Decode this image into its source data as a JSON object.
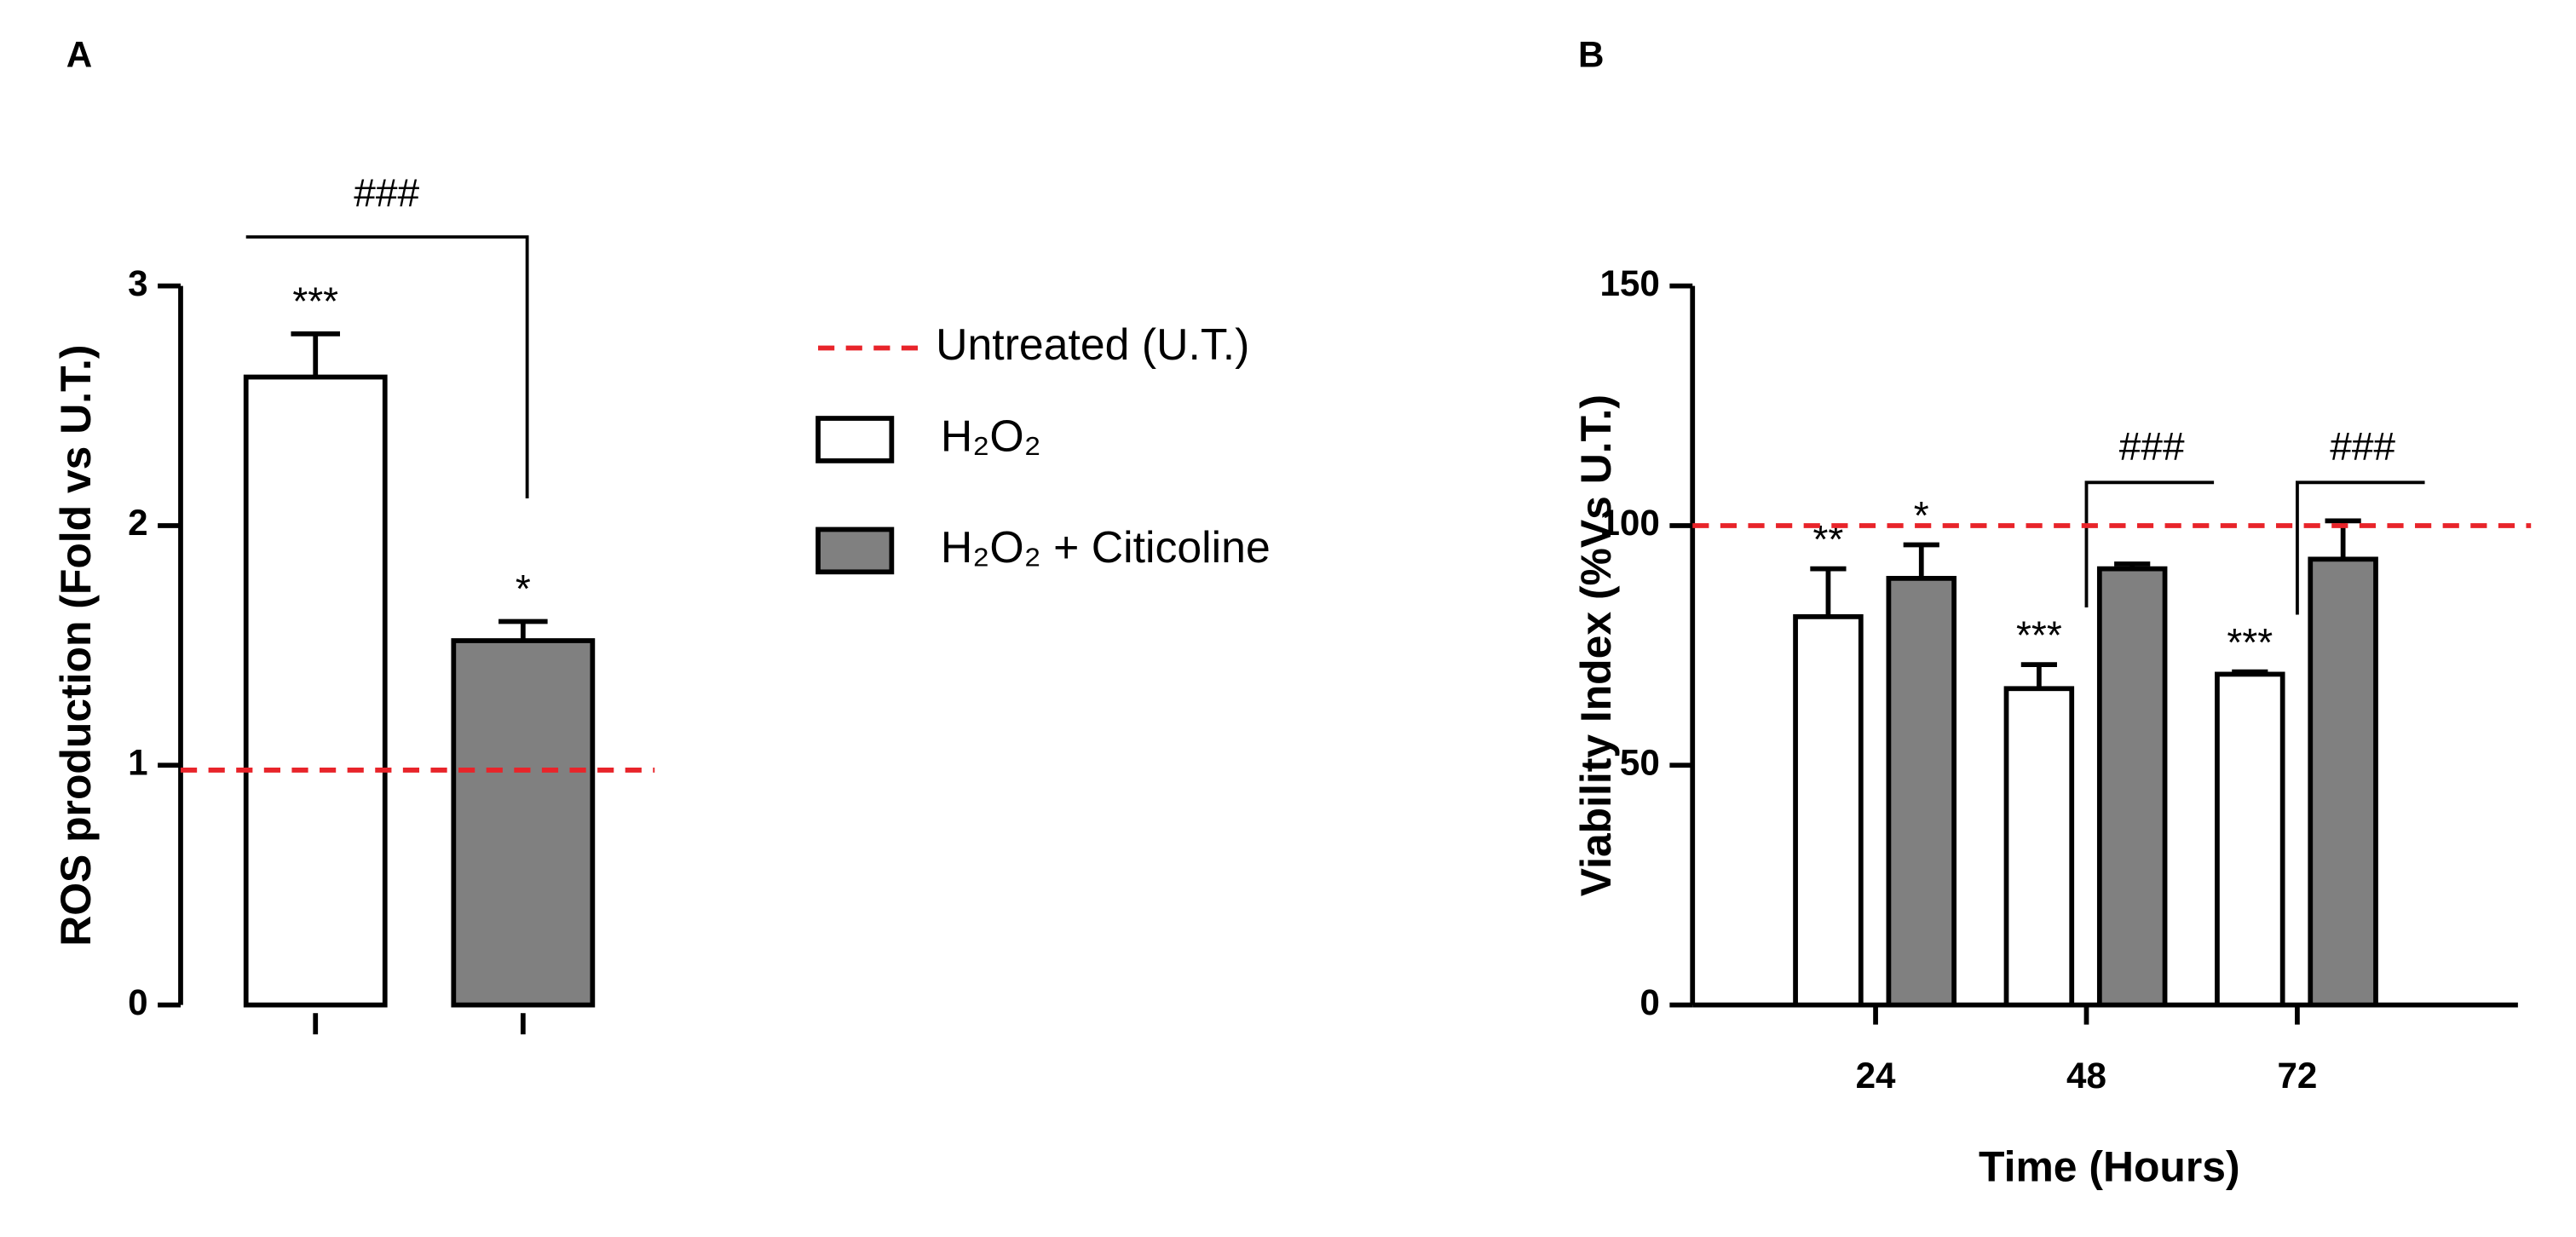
{
  "chart_data": [
    {
      "type": "bar",
      "panel_label": "A",
      "ylabel": "ROS production (Fold vs U.T.)",
      "categories": [
        null,
        null
      ],
      "values": [
        2.62,
        1.52
      ],
      "errors": [
        0.18,
        0.08
      ],
      "colors": [
        "#ffffff",
        "#808080"
      ],
      "significance": [
        "***",
        "*"
      ],
      "bracket": "###",
      "reference_line": {
        "value": 0.98,
        "color": "#e8242a"
      },
      "ylim": [
        0,
        3
      ],
      "yticks": [
        0,
        1,
        2,
        3
      ]
    },
    {
      "type": "grouped_bar",
      "panel_label": "B",
      "xlabel": "Time (Hours)",
      "ylabel": "Viability Index (%Vs U.T.)",
      "categories": [
        "24",
        "48",
        "72"
      ],
      "series": [
        {
          "name": "H₂O₂",
          "color": "#ffffff",
          "values": [
            81,
            66,
            69
          ],
          "errors": [
            10,
            5,
            0.5
          ],
          "significance": [
            "**",
            "***",
            "***"
          ]
        },
        {
          "name": "H₂O₂ + Citicoline",
          "color": "#808080",
          "values": [
            89,
            91,
            93
          ],
          "errors": [
            7,
            1,
            8
          ],
          "significance": [
            "*",
            null,
            null
          ]
        }
      ],
      "brackets": [
        null,
        "###",
        "###"
      ],
      "reference_line": {
        "value": 100,
        "name": "Untreated (U.T.)",
        "color": "#e8242a"
      },
      "ylim": [
        0,
        150
      ],
      "yticks": [
        0,
        50,
        100,
        150
      ]
    }
  ]
}
